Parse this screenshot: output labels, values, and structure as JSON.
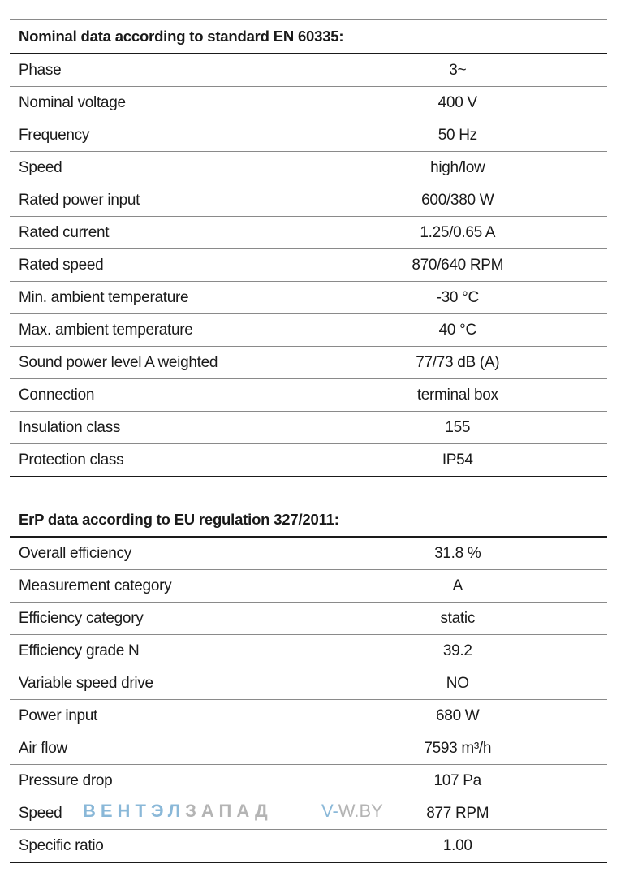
{
  "nominal": {
    "heading": "Nominal data according to standard EN 60335:",
    "rows": [
      {
        "label": "Phase",
        "value": "3~"
      },
      {
        "label": "Nominal voltage",
        "value": "400 V"
      },
      {
        "label": "Frequency",
        "value": "50 Hz"
      },
      {
        "label": "Speed",
        "value": "high/low"
      },
      {
        "label": "Rated power input",
        "value": "600/380 W"
      },
      {
        "label": "Rated current",
        "value": "1.25/0.65 A"
      },
      {
        "label": "Rated speed",
        "value": "870/640 RPM"
      },
      {
        "label": "Min. ambient temperature",
        "value": "-30 °C"
      },
      {
        "label": "Max. ambient temperature",
        "value": "40 °C"
      },
      {
        "label": "Sound power level A weighted",
        "value": "77/73 dB (A)"
      },
      {
        "label": "Connection",
        "value": "terminal box"
      },
      {
        "label": "Insulation class",
        "value": "155"
      },
      {
        "label": "Protection class",
        "value": "IP54"
      }
    ]
  },
  "erp": {
    "heading": "ErP data according to EU regulation 327/2011:",
    "rows": [
      {
        "label": "Overall efficiency",
        "value": "31.8 %"
      },
      {
        "label": "Measurement category",
        "value": "A"
      },
      {
        "label": "Efficiency category",
        "value": "static"
      },
      {
        "label": "Efficiency grade N",
        "value": "39.2"
      },
      {
        "label": "Variable speed drive",
        "value": "NO"
      },
      {
        "label": "Power input",
        "value": "680 W"
      },
      {
        "label": "Air flow",
        "value": "7593 m³/h"
      },
      {
        "label": "Pressure drop",
        "value": "107 Pa"
      },
      {
        "label": "Speed",
        "value": "877 RPM"
      },
      {
        "label": "Specific ratio",
        "value": "1.00"
      }
    ]
  },
  "watermark": {
    "brand_blue": "ВЕНТЭЛ",
    "brand_grey": "ЗАПАД",
    "site_blue": "V-",
    "site_grey": "W.BY"
  },
  "colors": {
    "rule": "#8a8a8a",
    "rule_strong": "#1a1a1a",
    "watermark_blue": "#8ab8d8",
    "watermark_grey": "#b4b4b4"
  }
}
